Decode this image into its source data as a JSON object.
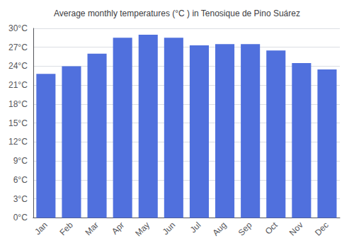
{
  "chart_data": {
    "type": "bar",
    "title": "Average monthly temperatures (°C ) in Tenosique de Pino Suárez",
    "categories": [
      "Jan",
      "Feb",
      "Mar",
      "Apr",
      "May",
      "Jun",
      "Jul",
      "Aug",
      "Sep",
      "Oct",
      "Nov",
      "Dec"
    ],
    "values": [
      22.8,
      24.0,
      26.0,
      28.5,
      29.0,
      28.5,
      27.3,
      27.5,
      27.5,
      26.5,
      24.5,
      23.5
    ],
    "ylim": [
      0,
      30
    ],
    "yticks": [
      {
        "value": 0,
        "label": "0°C"
      },
      {
        "value": 3,
        "label": "3°C"
      },
      {
        "value": 6,
        "label": "6°C"
      },
      {
        "value": 9,
        "label": "9°C"
      },
      {
        "value": 12,
        "label": "12°C"
      },
      {
        "value": 15,
        "label": "15°C"
      },
      {
        "value": 18,
        "label": "18°C"
      },
      {
        "value": 21,
        "label": "21°C"
      },
      {
        "value": 24,
        "label": "24°C"
      },
      {
        "value": 27,
        "label": "27°C"
      },
      {
        "value": 30,
        "label": "30°C"
      }
    ],
    "grid": true
  }
}
